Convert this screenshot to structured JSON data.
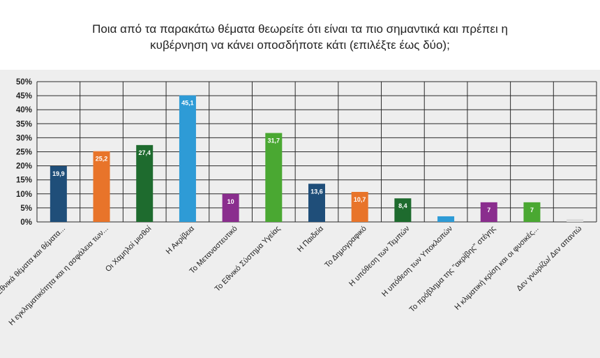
{
  "chart_data": {
    "type": "bar",
    "title_lines": [
      "Ποια από τα παρακάτω θέματα θεωρείτε ότι είναι τα πιο σημαντικά και πρέπει η",
      "κυβέρνηση να κάνει  οποσδήποτε κάτι (επιλέξτε έως δύο);"
    ],
    "ylim": [
      0,
      50
    ],
    "yticks": [
      "0%",
      "5%",
      "10%",
      "15%",
      "20%",
      "25%",
      "30%",
      "35%",
      "40%",
      "45%",
      "50%"
    ],
    "grid": true,
    "categories": [
      "Εθνικά θέματα και θέματα...",
      "Η εγκληματικότητα και η ασφάλεια των...",
      "Οι Χαμηλοί μισθοί",
      "Η Ακρίβεια",
      "Το Μεταναστευτικό",
      "Το Εθνικό Σύστημα Υγείας",
      "Η Παιδεία",
      "Το Δημογραφικό",
      "Η υπόθεση των Τεμπών",
      "Η υπόθεση των Υποκλοπών",
      "Το πρόβλημα της \"ακρίβης\" στέγης",
      "Η κλιματική κρίση και οι φυσικές...",
      "Δεν γνωρίζω/ Δεν απαντώ"
    ],
    "values": [
      19.9,
      25.2,
      27.4,
      45.1,
      10,
      31.7,
      13.6,
      10.7,
      8.4,
      2,
      7,
      7,
      1
    ],
    "value_labels": [
      "19,9",
      "25,2",
      "27,4",
      "45,1",
      "10",
      "31,7",
      "13,6",
      "10,7",
      "8,4",
      "",
      "7",
      "7",
      ""
    ],
    "colors": [
      "#1f4e79",
      "#e8742a",
      "#1e6b2e",
      "#2e9bd6",
      "#8a2d8e",
      "#4aa832",
      "#1f4e79",
      "#e8742a",
      "#1e6b2e",
      "#2e9bd6",
      "#8a2d8e",
      "#4aa832",
      "#dddddd"
    ]
  }
}
